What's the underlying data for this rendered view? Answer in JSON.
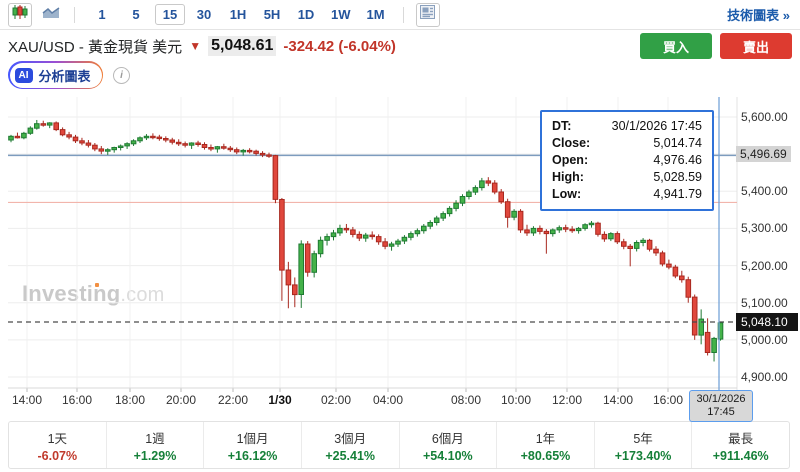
{
  "toolbar": {
    "chart_type_icons": [
      "candlestick",
      "area"
    ],
    "timeframes": [
      "1",
      "5",
      "15",
      "30",
      "1H",
      "5H",
      "1D",
      "1W",
      "1M"
    ],
    "selected_timeframe": "15",
    "technical_chart_link": "技術圖表 »"
  },
  "header": {
    "title": "XAU/USD - 黃金現貨 美元",
    "price": "5,048.61",
    "change": "-324.42 (-6.04%)",
    "direction": "down",
    "buy_label": "買入",
    "sell_label": "賣出"
  },
  "ai": {
    "chip": "AI",
    "label": "分析圖表"
  },
  "tooltip": {
    "rows": [
      {
        "label": "DT:",
        "value": "30/1/2026 17:45"
      },
      {
        "label": "Close:",
        "value": "5,014.74"
      },
      {
        "label": "Open:",
        "value": "4,976.46"
      },
      {
        "label": "High:",
        "value": "5,028.59"
      },
      {
        "label": "Low:",
        "value": "4,941.79"
      }
    ]
  },
  "watermark": {
    "brand": "Investing",
    "suffix": ".com"
  },
  "crosshair_date_label": {
    "line1": "30/1/2026",
    "line2": "17:45"
  },
  "colors": {
    "up_candle": "#44b249",
    "up_border": "#1f7a33",
    "down_candle": "#e0473c",
    "down_border": "#a8281f",
    "buy_button": "#31a046",
    "sell_button": "#dd3b30",
    "change_red": "#c13529",
    "pct_green": "#168039",
    "resistance_line_blue": "#7d9cbe",
    "support_line_pink": "#f2b5ac",
    "crosshair_blue": "#77a4d8",
    "last_price_bg": "#141414"
  },
  "chart_data": {
    "type": "candlestick",
    "symbol": "XAU/USD",
    "interval": "15m",
    "ylim": [
      4900,
      5600
    ],
    "grid": true,
    "y_axis_labels": [
      {
        "text": "5,600.00",
        "price": 5600,
        "style": "plain"
      },
      {
        "text": "5,496.69",
        "price": 5496.69,
        "style": "gray"
      },
      {
        "text": "5,400.00",
        "price": 5400,
        "style": "plain"
      },
      {
        "text": "5,300.00",
        "price": 5300,
        "style": "plain"
      },
      {
        "text": "5,200.00",
        "price": 5200,
        "style": "plain"
      },
      {
        "text": "5,100.00",
        "price": 5100,
        "style": "plain"
      },
      {
        "text": "5,048.10",
        "price": 5048.1,
        "style": "dark"
      },
      {
        "text": "5,000.00",
        "price": 5000,
        "style": "plain"
      },
      {
        "text": "4,900.00",
        "price": 4900,
        "style": "plain"
      }
    ],
    "x_ticks": [
      {
        "label": "14:00",
        "x": 27
      },
      {
        "label": "16:00",
        "x": 77
      },
      {
        "label": "18:00",
        "x": 130
      },
      {
        "label": "20:00",
        "x": 181
      },
      {
        "label": "22:00",
        "x": 233
      },
      {
        "label": "1/30",
        "x": 280,
        "bold": true
      },
      {
        "label": "02:00",
        "x": 336
      },
      {
        "label": "04:00",
        "x": 388
      },
      {
        "label": "08:00",
        "x": 466
      },
      {
        "label": "10:00",
        "x": 516
      },
      {
        "label": "12:00",
        "x": 567
      },
      {
        "label": "14:00",
        "x": 618
      },
      {
        "label": "16:00",
        "x": 668
      }
    ],
    "h_levels": {
      "blue_line": 5496.69,
      "pink_line": 5370,
      "last_price_dashed": 5048.1
    },
    "crosshair_x": 719,
    "candles_ohlc": [
      [
        5538,
        5552,
        5532,
        5548
      ],
      [
        5548,
        5558,
        5542,
        5544
      ],
      [
        5544,
        5560,
        5540,
        5556
      ],
      [
        5556,
        5575,
        5552,
        5570
      ],
      [
        5570,
        5592,
        5566,
        5582
      ],
      [
        5582,
        5590,
        5574,
        5578
      ],
      [
        5578,
        5586,
        5570,
        5584
      ],
      [
        5584,
        5588,
        5562,
        5566
      ],
      [
        5566,
        5572,
        5548,
        5552
      ],
      [
        5552,
        5560,
        5540,
        5546
      ],
      [
        5546,
        5552,
        5530,
        5536
      ],
      [
        5536,
        5544,
        5524,
        5530
      ],
      [
        5530,
        5538,
        5518,
        5524
      ],
      [
        5524,
        5530,
        5508,
        5514
      ],
      [
        5514,
        5522,
        5500,
        5508
      ],
      [
        5508,
        5516,
        5498,
        5512
      ],
      [
        5512,
        5520,
        5504,
        5518
      ],
      [
        5518,
        5526,
        5510,
        5522
      ],
      [
        5522,
        5532,
        5514,
        5528
      ],
      [
        5528,
        5540,
        5522,
        5536
      ],
      [
        5536,
        5548,
        5530,
        5544
      ],
      [
        5544,
        5554,
        5538,
        5548
      ],
      [
        5548,
        5556,
        5540,
        5546
      ],
      [
        5546,
        5552,
        5536,
        5542
      ],
      [
        5542,
        5548,
        5532,
        5538
      ],
      [
        5538,
        5544,
        5526,
        5532
      ],
      [
        5532,
        5540,
        5522,
        5528
      ],
      [
        5528,
        5534,
        5518,
        5524
      ],
      [
        5524,
        5532,
        5514,
        5530
      ],
      [
        5530,
        5536,
        5520,
        5526
      ],
      [
        5526,
        5532,
        5512,
        5518
      ],
      [
        5518,
        5526,
        5508,
        5514
      ],
      [
        5514,
        5522,
        5504,
        5520
      ],
      [
        5520,
        5528,
        5512,
        5516
      ],
      [
        5516,
        5522,
        5506,
        5512
      ],
      [
        5512,
        5518,
        5500,
        5506
      ],
      [
        5506,
        5514,
        5496,
        5510
      ],
      [
        5510,
        5516,
        5502,
        5508
      ],
      [
        5508,
        5512,
        5496,
        5502
      ],
      [
        5502,
        5508,
        5492,
        5498
      ],
      [
        5498,
        5504,
        5490,
        5496
      ],
      [
        5496,
        5498,
        5368,
        5378
      ],
      [
        5378,
        5382,
        5105,
        5188
      ],
      [
        5188,
        5210,
        5085,
        5148
      ],
      [
        5148,
        5168,
        5088,
        5122
      ],
      [
        5122,
        5268,
        5086,
        5258
      ],
      [
        5258,
        5266,
        5170,
        5182
      ],
      [
        5182,
        5240,
        5168,
        5232
      ],
      [
        5232,
        5278,
        5222,
        5268
      ],
      [
        5268,
        5286,
        5254,
        5278
      ],
      [
        5278,
        5296,
        5268,
        5288
      ],
      [
        5288,
        5310,
        5280,
        5300
      ],
      [
        5300,
        5312,
        5288,
        5296
      ],
      [
        5296,
        5304,
        5276,
        5284
      ],
      [
        5284,
        5292,
        5266,
        5274
      ],
      [
        5274,
        5288,
        5264,
        5282
      ],
      [
        5282,
        5292,
        5270,
        5278
      ],
      [
        5278,
        5284,
        5256,
        5264
      ],
      [
        5264,
        5274,
        5244,
        5252
      ],
      [
        5252,
        5264,
        5240,
        5258
      ],
      [
        5258,
        5272,
        5250,
        5266
      ],
      [
        5266,
        5282,
        5258,
        5276
      ],
      [
        5276,
        5292,
        5268,
        5286
      ],
      [
        5286,
        5300,
        5278,
        5294
      ],
      [
        5294,
        5312,
        5286,
        5306
      ],
      [
        5306,
        5322,
        5298,
        5316
      ],
      [
        5316,
        5334,
        5308,
        5328
      ],
      [
        5328,
        5346,
        5320,
        5340
      ],
      [
        5340,
        5360,
        5332,
        5354
      ],
      [
        5354,
        5376,
        5346,
        5368
      ],
      [
        5368,
        5392,
        5360,
        5386
      ],
      [
        5386,
        5404,
        5378,
        5398
      ],
      [
        5398,
        5416,
        5390,
        5410
      ],
      [
        5410,
        5436,
        5402,
        5428
      ],
      [
        5428,
        5438,
        5414,
        5422
      ],
      [
        5422,
        5430,
        5392,
        5398
      ],
      [
        5398,
        5406,
        5366,
        5372
      ],
      [
        5372,
        5380,
        5302,
        5330
      ],
      [
        5330,
        5352,
        5322,
        5346
      ],
      [
        5346,
        5352,
        5288,
        5296
      ],
      [
        5296,
        5310,
        5280,
        5288
      ],
      [
        5288,
        5306,
        5280,
        5300
      ],
      [
        5300,
        5308,
        5284,
        5292
      ],
      [
        5292,
        5298,
        5232,
        5286
      ],
      [
        5286,
        5300,
        5278,
        5296
      ],
      [
        5296,
        5308,
        5288,
        5302
      ],
      [
        5302,
        5310,
        5290,
        5298
      ],
      [
        5298,
        5306,
        5288,
        5294
      ],
      [
        5294,
        5304,
        5286,
        5300
      ],
      [
        5300,
        5314,
        5294,
        5310
      ],
      [
        5310,
        5320,
        5302,
        5314
      ],
      [
        5314,
        5318,
        5278,
        5284
      ],
      [
        5284,
        5292,
        5264,
        5272
      ],
      [
        5272,
        5290,
        5266,
        5286
      ],
      [
        5286,
        5292,
        5258,
        5264
      ],
      [
        5264,
        5272,
        5244,
        5252
      ],
      [
        5252,
        5258,
        5198,
        5246
      ],
      [
        5246,
        5268,
        5238,
        5262
      ],
      [
        5262,
        5274,
        5252,
        5268
      ],
      [
        5268,
        5272,
        5238,
        5244
      ],
      [
        5244,
        5252,
        5226,
        5234
      ],
      [
        5234,
        5240,
        5198,
        5204
      ],
      [
        5204,
        5216,
        5190,
        5196
      ],
      [
        5196,
        5202,
        5166,
        5172
      ],
      [
        5172,
        5186,
        5154,
        5162
      ],
      [
        5162,
        5170,
        5100,
        5115
      ],
      [
        5115,
        5122,
        5000,
        5013
      ],
      [
        5013,
        5082,
        4988,
        5056
      ],
      [
        5020,
        5058,
        4958,
        4966
      ],
      [
        4966,
        5008,
        4941.79,
        5004
      ],
      [
        5002,
        5048.1,
        4998,
        5046
      ]
    ]
  },
  "periods": [
    {
      "label": "1天",
      "change": "-6.07%",
      "dir": "down"
    },
    {
      "label": "1週",
      "change": "+1.29%",
      "dir": "up"
    },
    {
      "label": "1個月",
      "change": "+16.12%",
      "dir": "up"
    },
    {
      "label": "3個月",
      "change": "+25.41%",
      "dir": "up"
    },
    {
      "label": "6個月",
      "change": "+54.10%",
      "dir": "up"
    },
    {
      "label": "1年",
      "change": "+80.65%",
      "dir": "up"
    },
    {
      "label": "5年",
      "change": "+173.40%",
      "dir": "up"
    },
    {
      "label": "最長",
      "change": "+911.46%",
      "dir": "up"
    }
  ]
}
